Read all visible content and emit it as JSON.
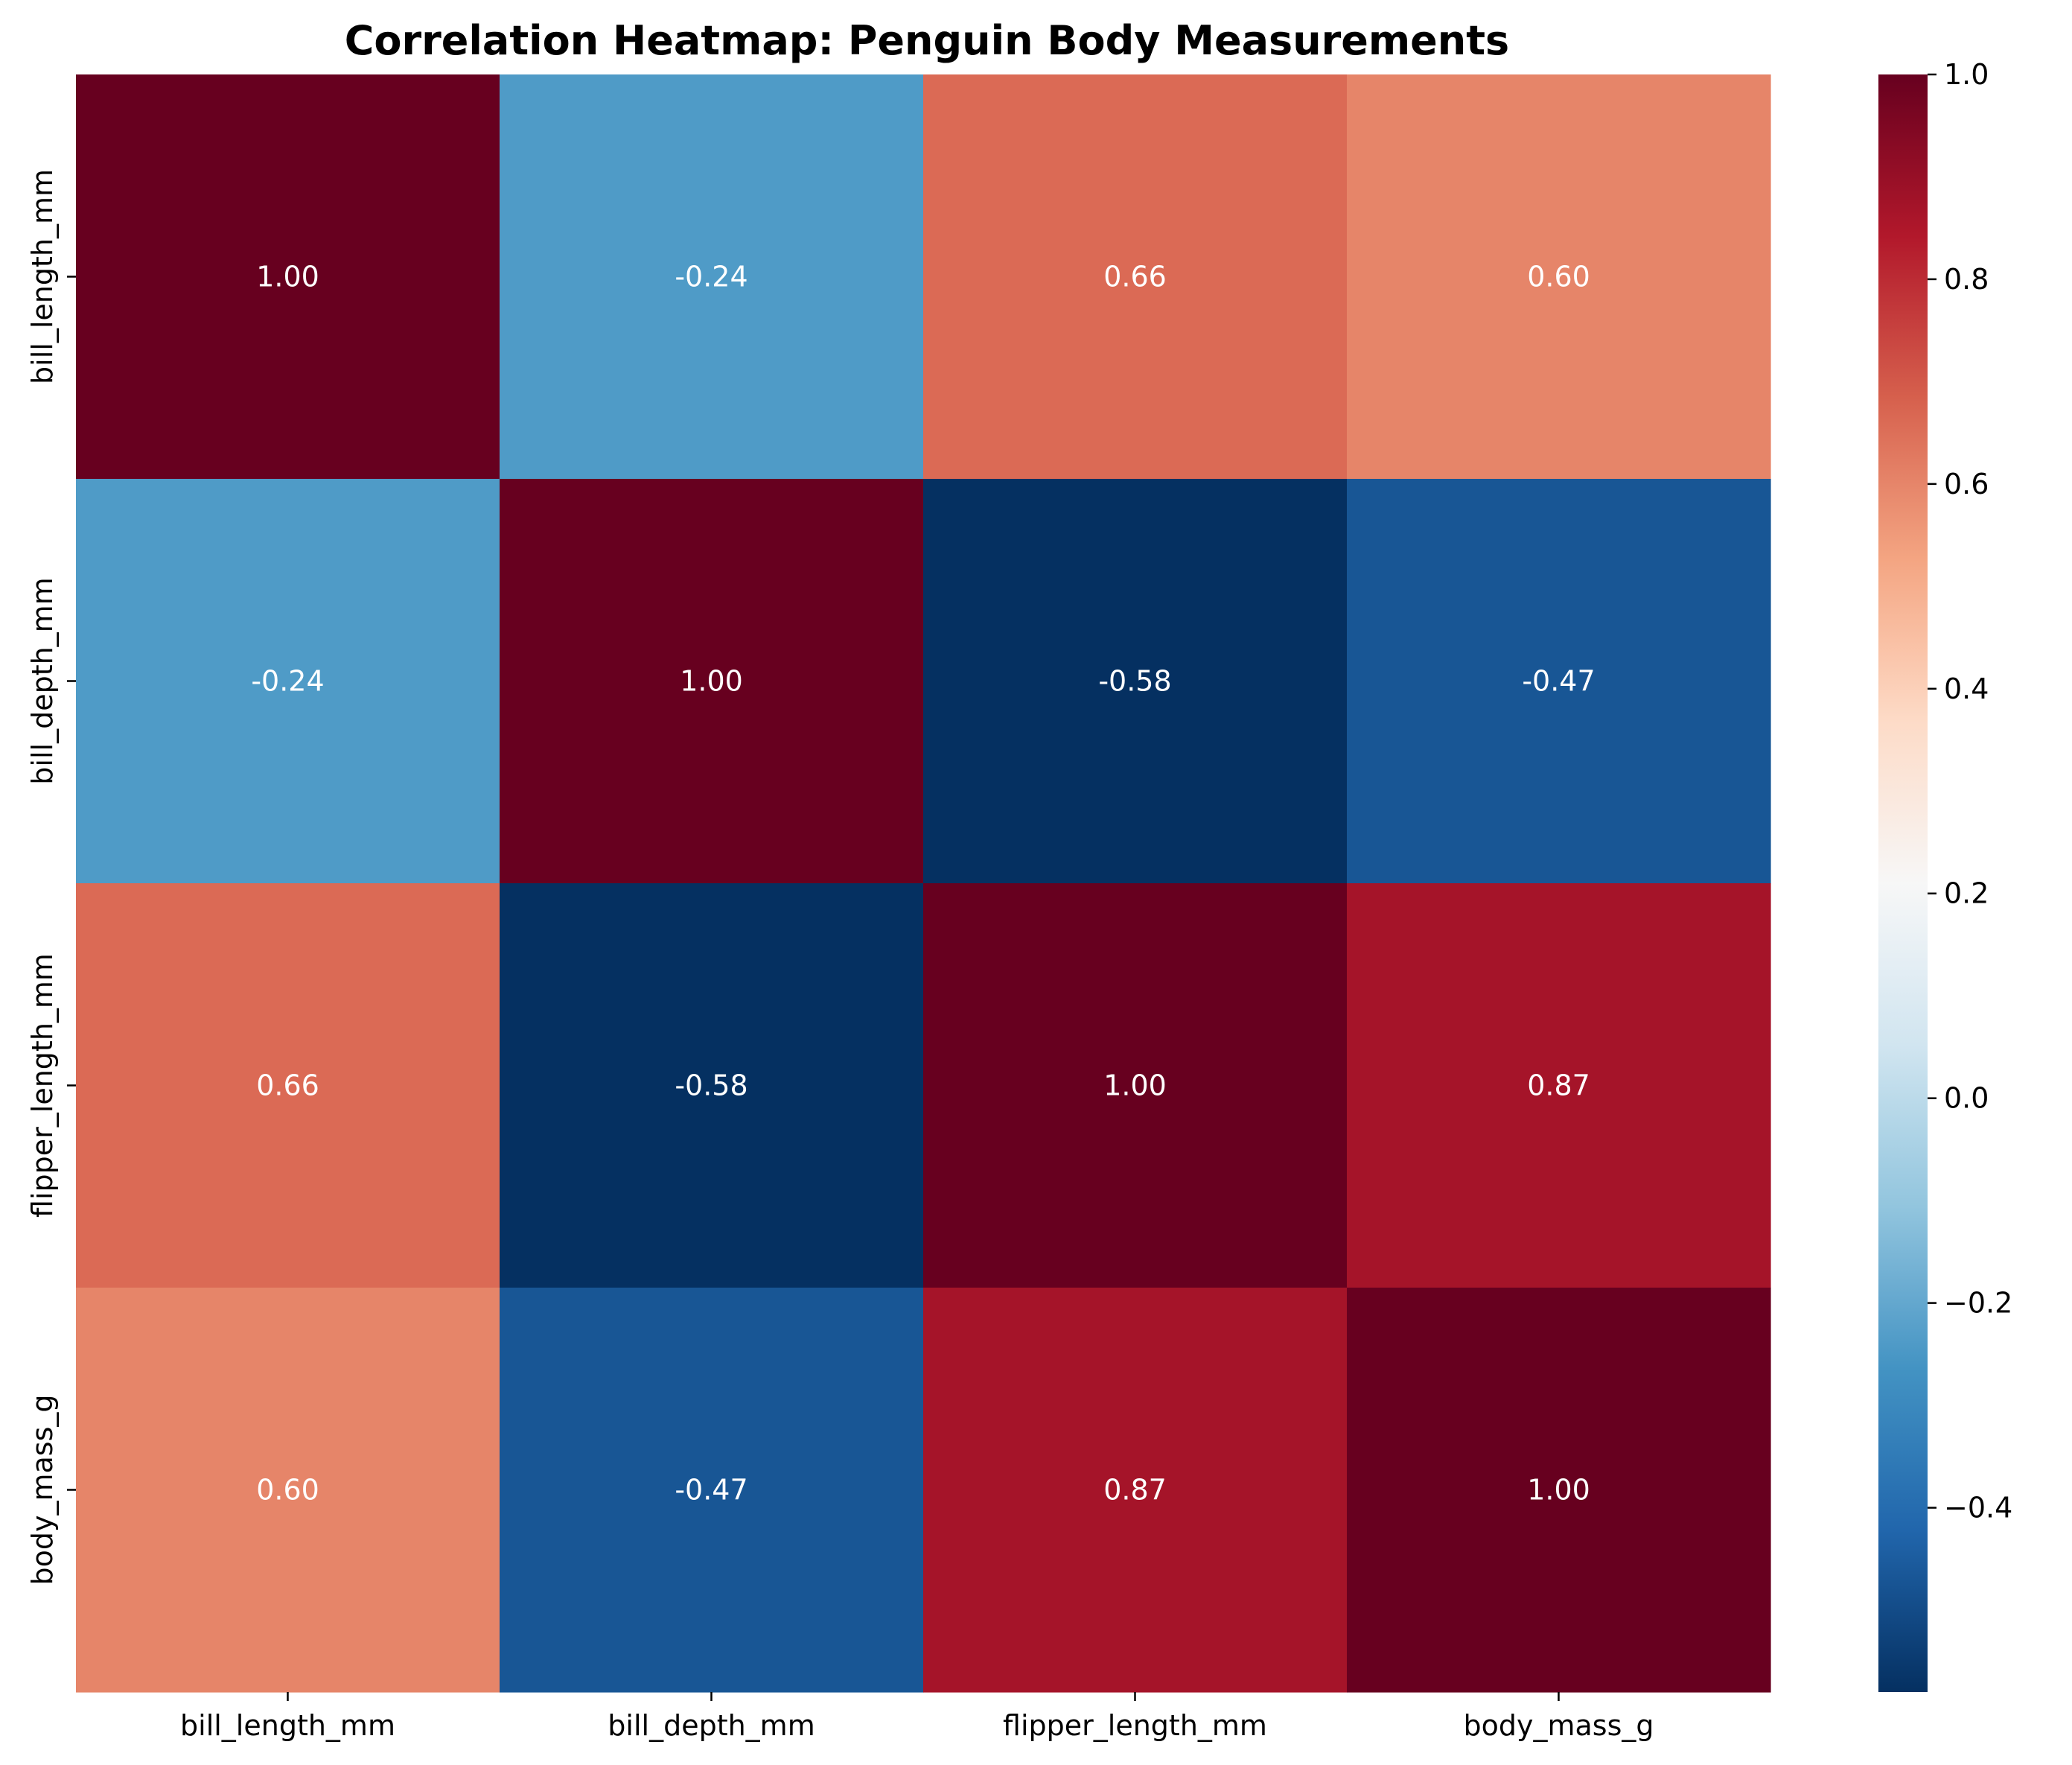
{
  "chart_data": {
    "type": "heatmap",
    "title": "Correlation Heatmap: Penguin Body Measurements",
    "xlabel": "",
    "ylabel": "",
    "row_labels": [
      "bill_length_mm",
      "bill_depth_mm",
      "flipper_length_mm",
      "body_mass_g"
    ],
    "col_labels": [
      "bill_length_mm",
      "bill_depth_mm",
      "flipper_length_mm",
      "body_mass_g"
    ],
    "values": [
      [
        1.0,
        -0.24,
        0.66,
        0.6
      ],
      [
        -0.24,
        1.0,
        -0.58,
        -0.47
      ],
      [
        0.66,
        -0.58,
        1.0,
        0.87
      ],
      [
        0.6,
        -0.47,
        0.87,
        1.0
      ]
    ],
    "cell_labels": [
      [
        "1.00",
        "-0.24",
        "0.66",
        "0.60"
      ],
      [
        "-0.24",
        "1.00",
        "-0.58",
        "-0.47"
      ],
      [
        "0.66",
        "-0.58",
        "1.00",
        "0.87"
      ],
      [
        "0.60",
        "-0.47",
        "0.87",
        "1.00"
      ]
    ],
    "colormap": "RdBu_r",
    "vmin": -0.58,
    "vmax": 1.0,
    "colorbar": {
      "ticks": [
        1.0,
        0.8,
        0.6,
        0.4,
        0.2,
        0.0,
        -0.2,
        -0.4
      ],
      "tick_labels": [
        "1.0",
        "0.8",
        "0.6",
        "0.4",
        "0.2",
        "0.0",
        "−0.2",
        "−0.4"
      ]
    },
    "annotation_color": "#ffffff",
    "grid": false,
    "legend": "colorbar-right"
  }
}
